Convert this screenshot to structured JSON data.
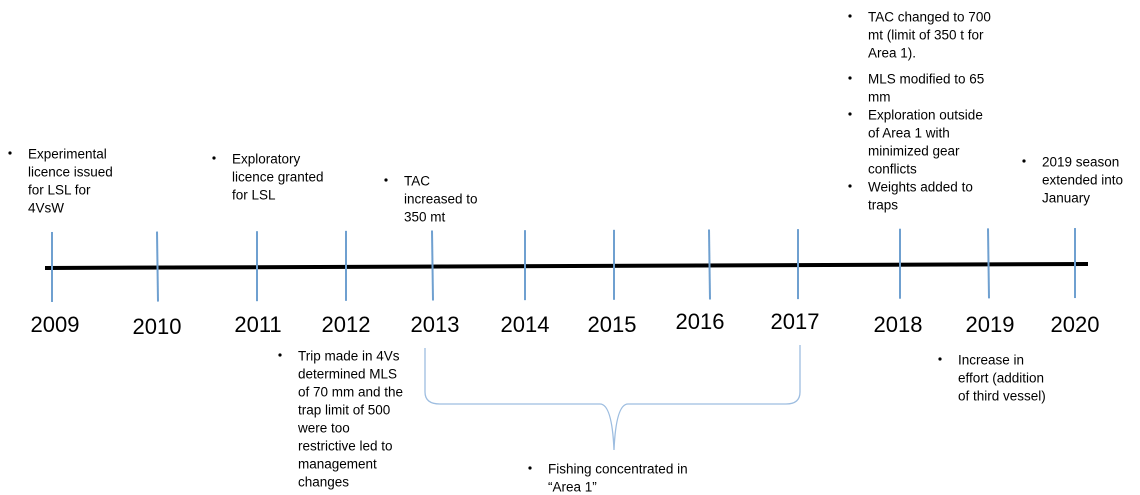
{
  "years": [
    2009,
    2010,
    2011,
    2012,
    2013,
    2014,
    2015,
    2016,
    2017,
    2018,
    2019,
    2020
  ],
  "notes": [
    {
      "bullets": [
        [
          "Experimental",
          "licence issued",
          "for LSL for",
          "4VsW"
        ]
      ]
    },
    {
      "bullets": [
        [
          "Exploratory",
          "licence granted",
          "for LSL"
        ]
      ]
    },
    {
      "bullets": [
        [
          "TAC",
          "increased to",
          "350 mt"
        ]
      ]
    },
    {
      "bullets": [
        [
          "TAC changed to 700",
          "mt (limit of 350 t for",
          "Area 1)."
        ],
        [
          "MLS modified to 65",
          "mm"
        ],
        [
          "Exploration outside",
          "of Area 1 with",
          "minimized gear",
          "conflicts"
        ],
        [
          "Weights added to",
          "traps"
        ]
      ]
    },
    {
      "bullets": [
        [
          "2019 season",
          "extended into",
          "January"
        ]
      ]
    },
    {
      "bullets": [
        [
          "Trip made in 4Vs",
          "determined MLS",
          "of 70 mm and the",
          "trap limit of 500",
          "were too",
          "restrictive led to",
          "management",
          "changes"
        ]
      ]
    },
    {
      "bullets": [
        [
          "Increase in",
          "effort (addition",
          "of third vessel)"
        ]
      ]
    },
    {
      "bullets": [
        [
          "Fishing concentrated in",
          "“Area 1”"
        ]
      ]
    }
  ]
}
